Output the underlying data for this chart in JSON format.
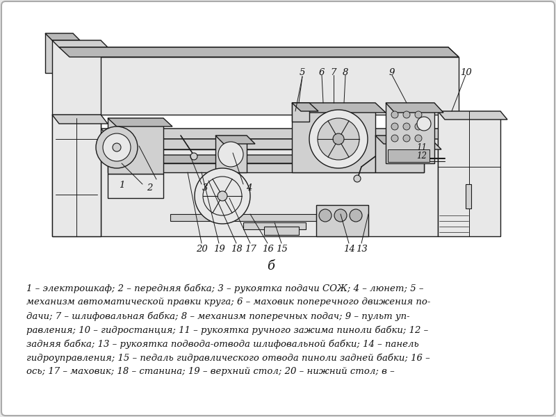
{
  "bg_color": "#e8e8e8",
  "card_color": "#ffffff",
  "border_color": "#555555",
  "text_color": "#111111",
  "figure_label": "б",
  "lc": "#1a1a1a",
  "lw": 1.0,
  "bc_light": "#e8e8e8",
  "bc_mid": "#d0d0d0",
  "bc_dark": "#b8b8b8",
  "description_lines": [
    "1 – электрошкаф; 2 – передняя бабка; 3 – рукоятка подачи СОЖ; 4 – люнет; 5 –",
    "механизм автоматической правки круга; 6 – маховик поперечного движения по-",
    "дачи; 7 – шлифовальная бабка; 8 – механизм поперечных подач; 9 – пульт уп-",
    "равления; 10 – гидростанция; 11 – рукоятка ручного зажима пиноли бабки; 12 –",
    "задняя бабка; 13 – рукоятка подвода-отвода шлифовальной бабки; 14 – панель",
    "гидроуправления; 15 – педаль гидравлического отвода пиноли задней бабки; 16 –",
    "ось; 17 – маховик; 18 – станина; 19 – верхний стол; 20 – нижний стол; в –"
  ]
}
